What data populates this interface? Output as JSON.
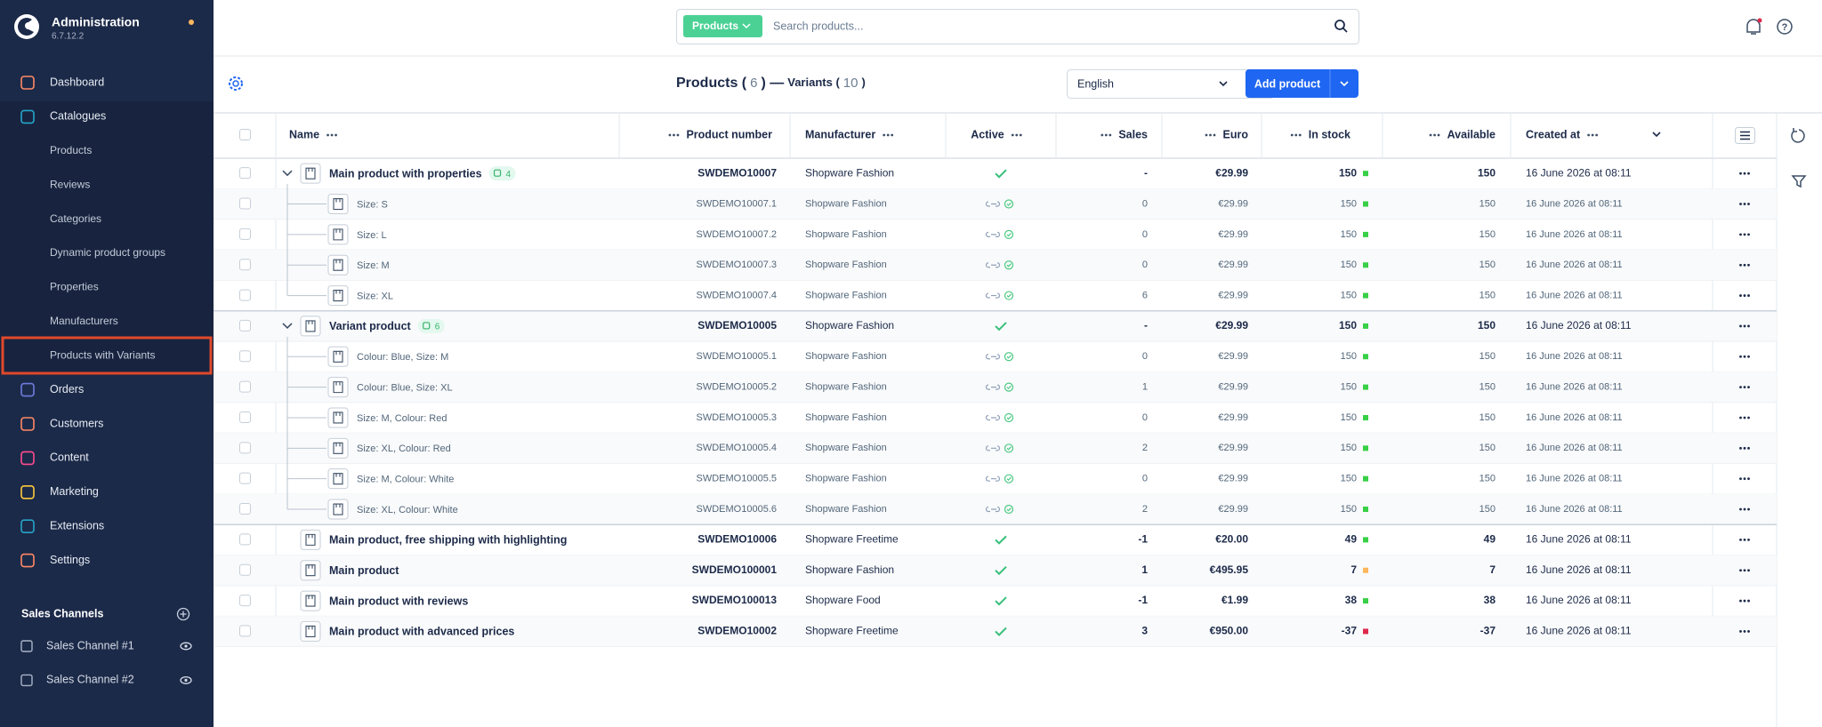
{
  "sidebar": {
    "title": "Administration",
    "version": "6.7.12.2",
    "items": [
      {
        "label": "Dashboard"
      },
      {
        "label": "Catalogues",
        "children": [
          "Products",
          "Reviews",
          "Categories",
          "Dynamic product groups",
          "Properties",
          "Manufacturers",
          "Products with Variants"
        ]
      },
      {
        "label": "Orders"
      },
      {
        "label": "Customers"
      },
      {
        "label": "Content"
      },
      {
        "label": "Marketing"
      },
      {
        "label": "Extensions"
      },
      {
        "label": "Settings"
      }
    ],
    "sales_channels": {
      "title": "Sales Channels",
      "items": [
        "Sales Channel #1",
        "Sales Channel #2"
      ]
    }
  },
  "header": {
    "search_filter": "Products",
    "search_placeholder": "Search products..."
  },
  "toolbar": {
    "title_parts": [
      "Products (",
      6,
      ") —",
      "Variants (",
      10,
      ")"
    ],
    "language": "English",
    "add_button": "Add product"
  },
  "table": {
    "columns": [
      "Name",
      "Product number",
      "Manufacturer",
      "Active",
      "Sales",
      "Euro",
      "In stock",
      "Available",
      "Created at"
    ],
    "rows": [
      {
        "kind": "parent",
        "name": "Main product with properties",
        "variants": 4,
        "number": "SWDEMO10007",
        "manufacturer": "Shopware Fashion",
        "active": true,
        "sales": "-",
        "price": "€29.99",
        "stock": 150,
        "stock_color": "#37d046",
        "available": 150,
        "created": "16 June 2026 at 08:11"
      },
      {
        "kind": "variant",
        "name": "Size: S",
        "number": "SWDEMO10007.1",
        "manufacturer": "Shopware Fashion",
        "active": true,
        "sales": 0,
        "price": "€29.99",
        "stock": 150,
        "stock_color": "#37d046",
        "available": 150,
        "created": "16 June 2026 at 08:11"
      },
      {
        "kind": "variant",
        "name": "Size: L",
        "number": "SWDEMO10007.2",
        "manufacturer": "Shopware Fashion",
        "active": true,
        "sales": 0,
        "price": "€29.99",
        "stock": 150,
        "stock_color": "#37d046",
        "available": 150,
        "created": "16 June 2026 at 08:11"
      },
      {
        "kind": "variant",
        "name": "Size: M",
        "number": "SWDEMO10007.3",
        "manufacturer": "Shopware Fashion",
        "active": true,
        "sales": 0,
        "price": "€29.99",
        "stock": 150,
        "stock_color": "#37d046",
        "available": 150,
        "created": "16 June 2026 at 08:11"
      },
      {
        "kind": "variant",
        "name": "Size: XL",
        "number": "SWDEMO10007.4",
        "manufacturer": "Shopware Fashion",
        "active": true,
        "sales": 6,
        "price": "€29.99",
        "stock": 150,
        "stock_color": "#37d046",
        "available": 150,
        "created": "16 June 2026 at 08:11"
      },
      {
        "kind": "parent",
        "name": "Variant product",
        "variants": 6,
        "number": "SWDEMO10005",
        "manufacturer": "Shopware Fashion",
        "active": true,
        "sales": "-",
        "price": "€29.99",
        "stock": 150,
        "stock_color": "#37d046",
        "available": 150,
        "created": "16 June 2026 at 08:11"
      },
      {
        "kind": "variant",
        "name": "Colour: Blue, Size: M",
        "number": "SWDEMO10005.1",
        "manufacturer": "Shopware Fashion",
        "active": true,
        "sales": 0,
        "price": "€29.99",
        "stock": 150,
        "stock_color": "#37d046",
        "available": 150,
        "created": "16 June 2026 at 08:11"
      },
      {
        "kind": "variant",
        "name": "Colour: Blue, Size: XL",
        "number": "SWDEMO10005.2",
        "manufacturer": "Shopware Fashion",
        "active": true,
        "sales": 1,
        "price": "€29.99",
        "stock": 150,
        "stock_color": "#37d046",
        "available": 150,
        "created": "16 June 2026 at 08:11"
      },
      {
        "kind": "variant",
        "name": "Size: M, Colour: Red",
        "number": "SWDEMO10005.3",
        "manufacturer": "Shopware Fashion",
        "active": true,
        "sales": 0,
        "price": "€29.99",
        "stock": 150,
        "stock_color": "#37d046",
        "available": 150,
        "created": "16 June 2026 at 08:11"
      },
      {
        "kind": "variant",
        "name": "Size: XL, Colour: Red",
        "number": "SWDEMO10005.4",
        "manufacturer": "Shopware Fashion",
        "active": true,
        "sales": 2,
        "price": "€29.99",
        "stock": 150,
        "stock_color": "#37d046",
        "available": 150,
        "created": "16 June 2026 at 08:11"
      },
      {
        "kind": "variant",
        "name": "Size: M, Colour: White",
        "number": "SWDEMO10005.5",
        "manufacturer": "Shopware Fashion",
        "active": true,
        "sales": 0,
        "price": "€29.99",
        "stock": 150,
        "stock_color": "#37d046",
        "available": 150,
        "created": "16 June 2026 at 08:11"
      },
      {
        "kind": "variant",
        "name": "Size: XL, Colour: White",
        "number": "SWDEMO10005.6",
        "manufacturer": "Shopware Fashion",
        "active": true,
        "sales": 2,
        "price": "€29.99",
        "stock": 150,
        "stock_color": "#37d046",
        "available": 150,
        "created": "16 June 2026 at 08:11"
      },
      {
        "kind": "single",
        "name": "Main product, free shipping with highlighting",
        "number": "SWDEMO10006",
        "manufacturer": "Shopware Freetime",
        "active": true,
        "sales": -1,
        "price": "€20.00",
        "stock": 49,
        "stock_color": "#37d046",
        "available": 49,
        "created": "16 June 2026 at 08:11"
      },
      {
        "kind": "single",
        "name": "Main product",
        "number": "SWDEMO100001",
        "manufacturer": "Shopware Fashion",
        "active": true,
        "sales": 1,
        "price": "€495.95",
        "stock": 7,
        "stock_color": "#ffb75d",
        "available": 7,
        "created": "16 June 2026 at 08:11"
      },
      {
        "kind": "single",
        "name": "Main product with reviews",
        "number": "SWDEMO100013",
        "manufacturer": "Shopware Food",
        "active": true,
        "sales": -1,
        "price": "€1.99",
        "stock": 38,
        "stock_color": "#37d046",
        "available": 38,
        "created": "16 June 2026 at 08:11"
      },
      {
        "kind": "single",
        "name": "Main product with advanced prices",
        "number": "SWDEMO10002",
        "manufacturer": "Shopware Freetime",
        "active": true,
        "sales": 3,
        "price": "€950.00",
        "stock": -37,
        "stock_color": "#de294c",
        "available": -37,
        "created": "16 June 2026 at 08:11"
      }
    ]
  }
}
